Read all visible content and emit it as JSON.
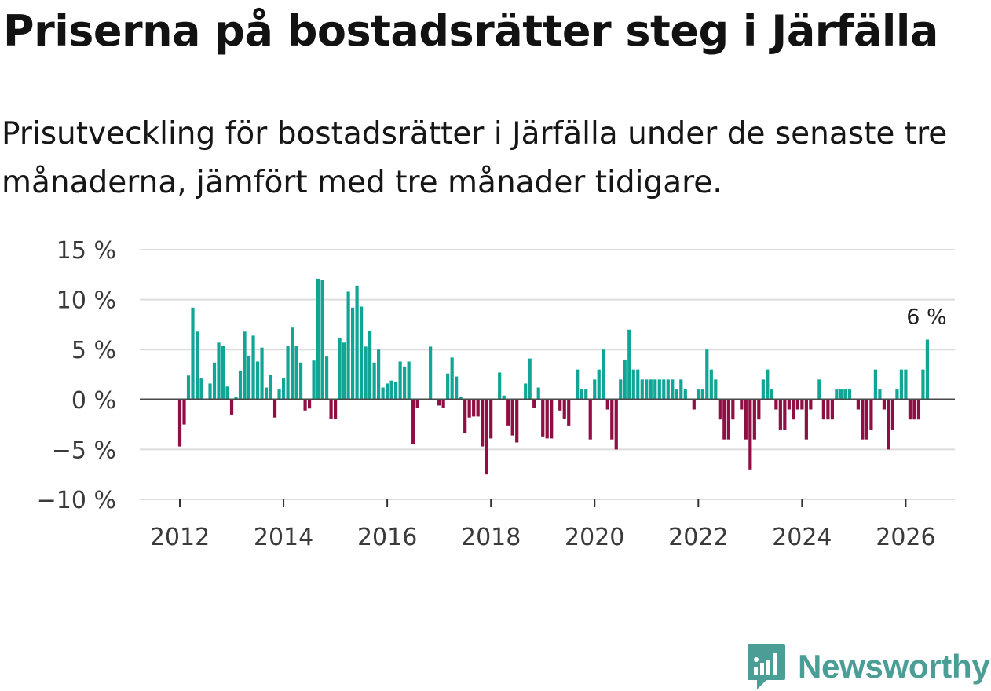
{
  "title": "Priserna på bostadsrätter steg i Järfälla",
  "subtitle": "Prisutveckling för bostadsrätter i Järfälla under de senaste tre månaderna, jämfört med tre månader tidigare.",
  "brand": {
    "name": "Newsworthy",
    "color": "#4a9e96"
  },
  "colors": {
    "positive": "#11a596",
    "negative": "#8f0f45",
    "grid": "#dcdcdc",
    "zero": "#4a4a4a"
  },
  "chart_data": {
    "type": "bar",
    "title": "Priserna på bostadsrätter steg i Järfälla",
    "xlabel": "",
    "ylabel": "",
    "ylim": [
      -10,
      15
    ],
    "yticks": [
      15,
      10,
      5,
      0,
      -5,
      -10
    ],
    "ytick_labels": [
      "15 %",
      "10 %",
      "5 %",
      "0 %",
      "−5 %",
      "−10 %"
    ],
    "xticks": [
      2012,
      2014,
      2016,
      2018,
      2020,
      2022,
      2024,
      2026
    ],
    "x_start": "2012-01",
    "annotation": {
      "label": "6 %",
      "value": 6,
      "position": "last bar"
    },
    "values": [
      -4.7,
      -2.5,
      2.4,
      9.2,
      6.8,
      2.1,
      0,
      1.6,
      3.7,
      5.7,
      5.4,
      1.3,
      -1.5,
      0.3,
      2.9,
      6.8,
      4.4,
      6.4,
      3.8,
      5.2,
      1.2,
      2.5,
      -1.8,
      1.0,
      2.1,
      5.4,
      7.2,
      5.4,
      3.7,
      -1.1,
      -0.9,
      3.9,
      12.1,
      12.0,
      4.3,
      -1.9,
      -1.9,
      6.2,
      5.7,
      10.8,
      9.2,
      11.4,
      9.3,
      5.3,
      6.9,
      3.7,
      5.0,
      1.2,
      1.6,
      1.9,
      1.8,
      3.8,
      3.3,
      3.8,
      -4.5,
      -0.8,
      0,
      0,
      5.3,
      0,
      -0.6,
      -0.8,
      2.6,
      4.2,
      2.3,
      0.3,
      -3.4,
      -1.8,
      -1.7,
      -1.7,
      -4.7,
      -7.5,
      -3.9,
      0,
      2.7,
      0.4,
      -2.6,
      -3.6,
      -4.3,
      0,
      1.6,
      4.1,
      -0.8,
      1.2,
      -3.7,
      -3.9,
      -3.9,
      0,
      -1.1,
      -1.9,
      -2.6,
      0,
      3.0,
      1.0,
      1.0,
      -4.0,
      2.0,
      3.0,
      5.0,
      -1.0,
      -4.0,
      -5.0,
      2.0,
      4.0,
      7.0,
      3.0,
      3.0,
      2.0,
      2.0,
      2.0,
      2.0,
      2.0,
      2.0,
      2.0,
      2.0,
      1.0,
      2.0,
      1.0,
      0,
      -1.0,
      1.0,
      1.0,
      5.0,
      3.0,
      2.0,
      -2.0,
      -4.0,
      -4.0,
      -2.0,
      0,
      -1.0,
      -4.0,
      -7.0,
      -4.0,
      -2.0,
      2.0,
      3.0,
      1.0,
      -1.0,
      -3.0,
      -3.0,
      -1.0,
      -2.0,
      -1.0,
      -1.0,
      -4.0,
      -1.0,
      0,
      2.0,
      -2.0,
      -2.0,
      -2.0,
      1.0,
      1.0,
      1.0,
      1.0,
      0,
      -1.0,
      -4.0,
      -4.0,
      -3.0,
      3.0,
      1.0,
      -1.0,
      -5.0,
      -3.0,
      1.0,
      3.0,
      3.0,
      -2.0,
      -2.0,
      -2.0,
      3.0,
      6.0
    ]
  }
}
